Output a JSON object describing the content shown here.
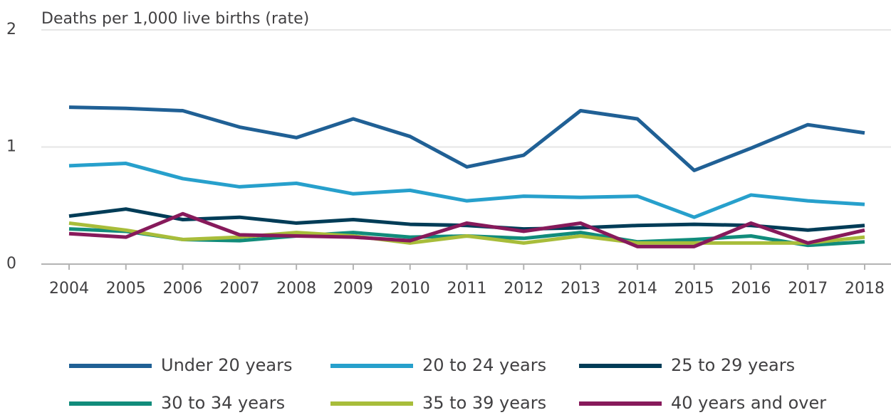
{
  "chart_data": {
    "type": "line",
    "y_axis_title": "Deaths per 1,000 live births (rate)",
    "categories": [
      "2004",
      "2005",
      "2006",
      "2007",
      "2008",
      "2009",
      "2010",
      "2011",
      "2012",
      "2013",
      "2014",
      "2015",
      "2016",
      "2017",
      "2018"
    ],
    "ylim": [
      0,
      2
    ],
    "yticks": [
      0,
      1,
      2
    ],
    "grid": true,
    "legend": "bottom",
    "series": [
      {
        "name": "Under 20 years",
        "color": "#206095",
        "values": [
          1.34,
          1.33,
          1.31,
          1.17,
          1.08,
          1.24,
          1.09,
          0.83,
          0.93,
          1.31,
          1.24,
          0.8,
          0.99,
          1.19,
          1.12
        ]
      },
      {
        "name": "20 to 24 years",
        "color": "#27a0cc",
        "values": [
          0.84,
          0.86,
          0.73,
          0.66,
          0.69,
          0.6,
          0.63,
          0.54,
          0.58,
          0.57,
          0.58,
          0.4,
          0.59,
          0.54,
          0.51
        ]
      },
      {
        "name": "25 to 29 years",
        "color": "#003c57",
        "values": [
          0.41,
          0.47,
          0.38,
          0.4,
          0.35,
          0.38,
          0.34,
          0.33,
          0.3,
          0.31,
          0.33,
          0.34,
          0.33,
          0.29,
          0.33
        ]
      },
      {
        "name": "30 to 34 years",
        "color": "#118c7b",
        "values": [
          0.3,
          0.28,
          0.21,
          0.2,
          0.24,
          0.27,
          0.23,
          0.24,
          0.22,
          0.27,
          0.19,
          0.21,
          0.24,
          0.16,
          0.19
        ]
      },
      {
        "name": "35 to 39 years",
        "color": "#a8bd3a",
        "values": [
          0.35,
          0.29,
          0.21,
          0.23,
          0.27,
          0.24,
          0.18,
          0.24,
          0.18,
          0.24,
          0.18,
          0.18,
          0.18,
          0.18,
          0.23
        ]
      },
      {
        "name": "40 years and over",
        "color": "#871a5b",
        "values": [
          0.26,
          0.23,
          0.43,
          0.25,
          0.24,
          0.23,
          0.2,
          0.35,
          0.28,
          0.35,
          0.15,
          0.15,
          0.35,
          0.18,
          0.29
        ]
      }
    ]
  }
}
